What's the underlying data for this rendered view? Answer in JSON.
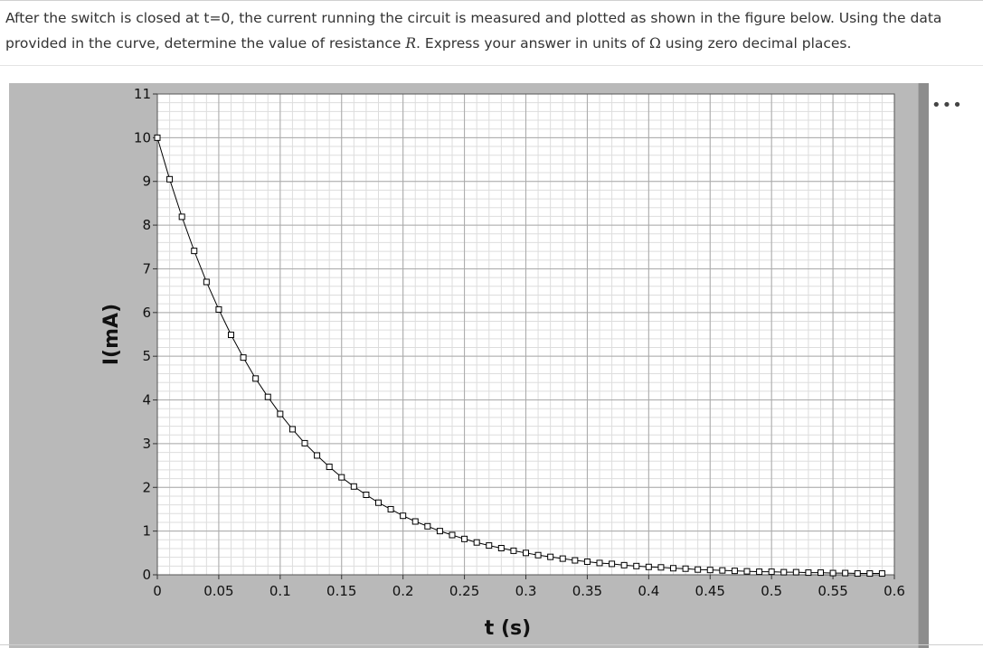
{
  "question": {
    "text_before_R": "After the switch is closed at t=0, the current running the circuit is measured and plotted as shown in the figure below. Using the data provided in the curve, determine the value of resistance ",
    "R_symbol": "R",
    "text_after_R": ". Express your answer in units of ",
    "omega_symbol": "Ω",
    "text_end": " using zero decimal places."
  },
  "more_button_label": "•••",
  "chart_data": {
    "type": "scatter",
    "title": "",
    "xlabel": "t (s)",
    "ylabel": "I(mA)",
    "xlim": [
      0,
      0.6
    ],
    "ylim": [
      0,
      11
    ],
    "xticks": [
      0,
      0.05,
      0.1,
      0.15,
      0.2,
      0.25,
      0.3,
      0.35,
      0.4,
      0.45,
      0.5,
      0.55,
      0.6
    ],
    "xtick_labels": [
      "0",
      "0.05",
      "0.1",
      "0.15",
      "0.2",
      "0.25",
      "0.3",
      "0.35",
      "0.4",
      "0.45",
      "0.5",
      "0.55",
      "0.6"
    ],
    "yticks": [
      0,
      1,
      2,
      3,
      4,
      5,
      6,
      7,
      8,
      9,
      10,
      11
    ],
    "ytick_labels": [
      "0",
      "1",
      "2",
      "3",
      "4",
      "5",
      "6",
      "7",
      "8",
      "9",
      "10",
      "11"
    ],
    "grid": true,
    "minor_grid_divisions": 5,
    "line_color": "#000000",
    "marker": "square",
    "series": [
      {
        "x": [
          0,
          0.01,
          0.02,
          0.03,
          0.04,
          0.05,
          0.06,
          0.07,
          0.08,
          0.09,
          0.1,
          0.11,
          0.12,
          0.13,
          0.14,
          0.15,
          0.16,
          0.17,
          0.18,
          0.19,
          0.2,
          0.21,
          0.22,
          0.23,
          0.24,
          0.25,
          0.26,
          0.27,
          0.28,
          0.29,
          0.3,
          0.31,
          0.32,
          0.33,
          0.34,
          0.35,
          0.36,
          0.37,
          0.38,
          0.39,
          0.4,
          0.41,
          0.42,
          0.43,
          0.44,
          0.45,
          0.46,
          0.47,
          0.48,
          0.49,
          0.5,
          0.51,
          0.52,
          0.53,
          0.54,
          0.55,
          0.56,
          0.57,
          0.58,
          0.59
        ],
        "y": [
          10,
          9.05,
          8.19,
          7.41,
          6.7,
          6.07,
          5.49,
          4.97,
          4.49,
          4.07,
          3.68,
          3.33,
          3.01,
          2.73,
          2.47,
          2.23,
          2.02,
          1.83,
          1.65,
          1.5,
          1.35,
          1.22,
          1.11,
          1.0,
          0.91,
          0.82,
          0.74,
          0.67,
          0.61,
          0.55,
          0.5,
          0.45,
          0.41,
          0.37,
          0.33,
          0.3,
          0.27,
          0.25,
          0.22,
          0.2,
          0.18,
          0.17,
          0.15,
          0.14,
          0.12,
          0.11,
          0.1,
          0.09,
          0.08,
          0.07,
          0.07,
          0.06,
          0.06,
          0.05,
          0.05,
          0.04,
          0.04,
          0.03,
          0.03,
          0.03
        ]
      }
    ]
  }
}
